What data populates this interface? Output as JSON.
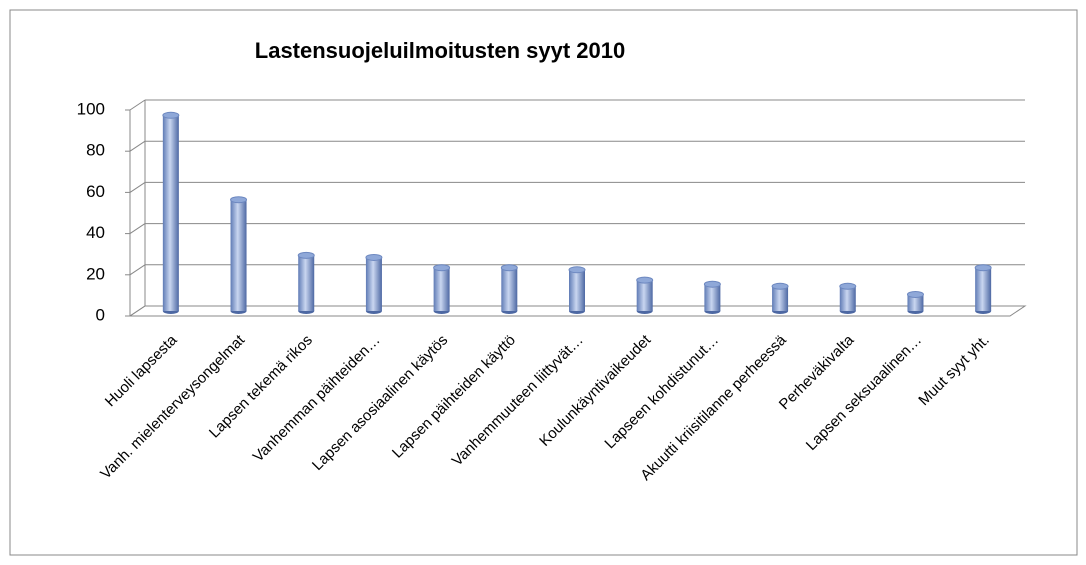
{
  "chart_data": {
    "type": "bar",
    "title": "Lastensuojeluilmoitusten syyt 2010",
    "categories": [
      "Huoli lapsesta",
      "Vanh. mielenterveysongelmat",
      "Lapsen tekemä rikos",
      "Vanhemman päihteiden…",
      "Lapsen asosiaalinen käytös",
      "Lapsen päihteiden käyttö",
      "Vanhemmuuteen liittyvät…",
      "Koulunkäyntivaikeudet",
      "Lapseen kohdistunut…",
      "Akuutti kriisitilanne perheessä",
      "Perheväkivalta",
      "Lapsen seksuaalinen…",
      "Muut syyt yht."
    ],
    "values": [
      95,
      54,
      27,
      26,
      21,
      21,
      20,
      15,
      13,
      12,
      12,
      8,
      21
    ],
    "color": "#8fa8d8",
    "ylim": [
      0,
      100
    ],
    "yticks": [
      0,
      20,
      40,
      60,
      80,
      100
    ],
    "grid": true
  }
}
